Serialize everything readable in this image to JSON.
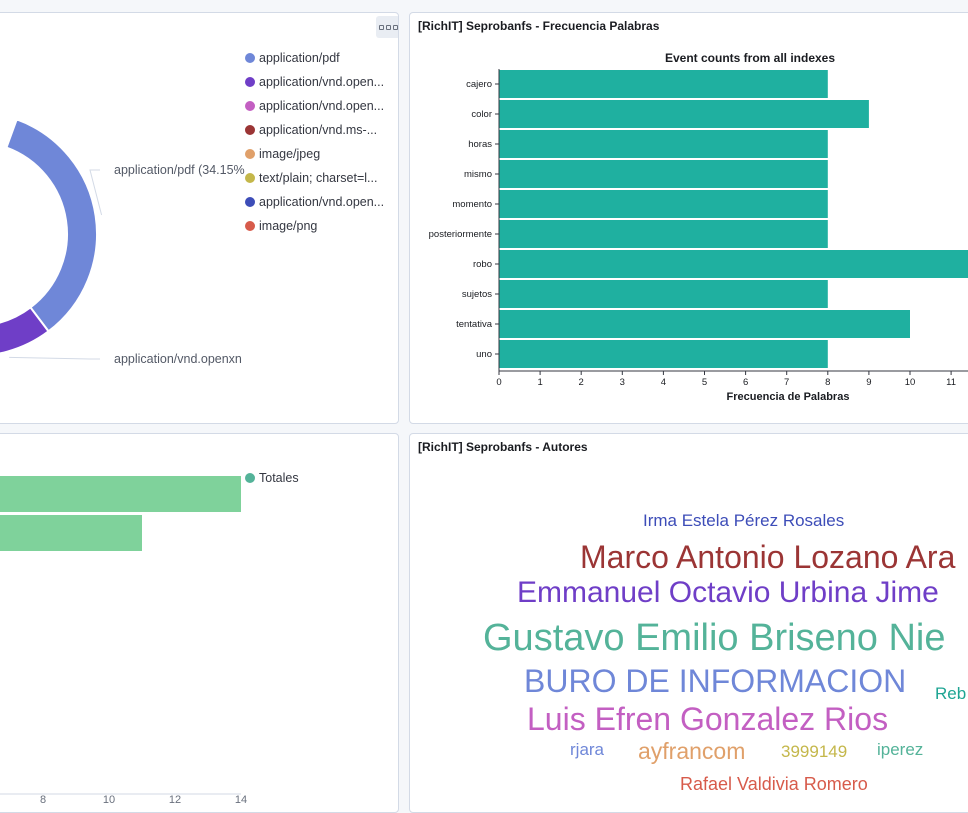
{
  "donut_panel": {
    "legend": [
      {
        "label": "application/pdf",
        "color": "#6f87d8"
      },
      {
        "label": "application/vnd.open...",
        "color": "#6f3ec7"
      },
      {
        "label": "application/vnd.open...",
        "color": "#c35fc2"
      },
      {
        "label": "application/vnd.ms-...",
        "color": "#9b3535"
      },
      {
        "label": "image/jpeg",
        "color": "#e0a06a"
      },
      {
        "label": "text/plain; charset=l...",
        "color": "#c4b74a"
      },
      {
        "label": "application/vnd.open...",
        "color": "#3d4db8"
      },
      {
        "label": "image/png",
        "color": "#d75b4b"
      }
    ],
    "callouts": [
      "application/pdf (34.15%",
      "application/vnd.openxn"
    ]
  },
  "freq_panel": {
    "title": "[RichIT] Seprobanfs - Frecuencia Palabras"
  },
  "totals_panel": {
    "legend": [
      {
        "label": "Totales",
        "color": "#54b399"
      }
    ]
  },
  "authors_panel": {
    "title": "[RichIT] Seprobanfs - Autores",
    "words": [
      {
        "text": "Irma Estela Pérez Rosales",
        "color": "#3d4db8"
      },
      {
        "text": "Marco Antonio Lozano Ara",
        "color": "#9b3535"
      },
      {
        "text": "Emmanuel Octavio Urbina Jime",
        "color": "#6f3ec7"
      },
      {
        "text": "Gustavo Emilio Briseno Nie",
        "color": "#54b399"
      },
      {
        "text": "BURO DE INFORMACION",
        "color": "#6f87d8"
      },
      {
        "text": "Reb",
        "color": "#1ea593"
      },
      {
        "text": "Luis Efren Gonzalez Rios",
        "color": "#c35fc2"
      },
      {
        "text": "rjara",
        "color": "#6f87d8"
      },
      {
        "text": "ayfrancom",
        "color": "#e0a06a"
      },
      {
        "text": "3999149",
        "color": "#c4b74a"
      },
      {
        "text": "iperez",
        "color": "#54b399"
      },
      {
        "text": "Rafael Valdivia Romero",
        "color": "#d75b4b"
      }
    ]
  },
  "chart_data": [
    {
      "type": "pie",
      "donut": true,
      "labels": [
        "application/pdf",
        "application/vnd.open..."
      ],
      "values": [
        34.15,
        12
      ],
      "colors": [
        "#6f87d8",
        "#6f3ec7"
      ],
      "annotations": [
        "application/pdf (34.15%",
        "application/vnd.openxn"
      ]
    },
    {
      "type": "bar",
      "orientation": "horizontal",
      "title": "Event counts from all indexes",
      "categories": [
        "cajero",
        "color",
        "horas",
        "mismo",
        "momento",
        "posteriormente",
        "robo",
        "sujetos",
        "tentativa",
        "uno"
      ],
      "values": [
        8,
        9,
        8,
        8,
        8,
        8,
        12,
        8,
        10,
        8
      ],
      "xlabel": "Frecuencia de Palabras",
      "xticks": [
        "0",
        "1",
        "2",
        "3",
        "4",
        "5",
        "6",
        "7",
        "8",
        "9",
        "10",
        "11"
      ],
      "xlim": [
        0,
        11.5
      ],
      "bar_color": "#1fb0a0"
    },
    {
      "type": "bar",
      "orientation": "horizontal",
      "series": [
        {
          "name": "Totales",
          "values": [
            14,
            11
          ]
        }
      ],
      "xticks": [
        "8",
        "10",
        "12",
        "14"
      ],
      "xlim": [
        6.6,
        14
      ],
      "bar_color": "#7fd29b"
    }
  ]
}
